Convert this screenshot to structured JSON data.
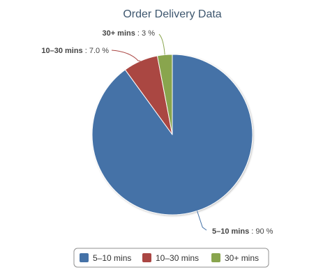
{
  "chart_data": {
    "type": "pie",
    "title": "Order Delivery Data",
    "slices": [
      {
        "label": "5–10 mins",
        "value": 90,
        "value_text": "90 %",
        "color": "#4572a7"
      },
      {
        "label": "10–30 mins",
        "value": 7.0,
        "value_text": "7.0 %",
        "color": "#aa4643"
      },
      {
        "label": "30+ mins",
        "value": 3,
        "value_text": "3 %",
        "color": "#89a54e"
      }
    ],
    "legend": {
      "position": "bottom"
    }
  }
}
